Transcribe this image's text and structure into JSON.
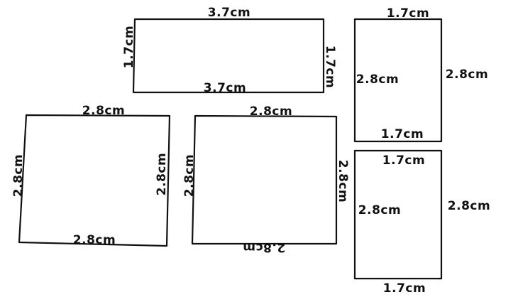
{
  "colors": {
    "ink": "#111111",
    "background": "#ffffff"
  },
  "rect_top": {
    "top": "3.7cm",
    "bottom": "3.7cm",
    "left": "1.7cm",
    "right": "1.7cm"
  },
  "square_left": {
    "top": "2.8cm",
    "bottom": "2.8cm",
    "left": "2.8cm",
    "right": "2.8cm"
  },
  "square_middle": {
    "top": "2.8cm",
    "bottom": "2.8cm",
    "left": "2.8cm",
    "right": "2.8cm"
  },
  "rect_right_upper": {
    "top": "1.7cm",
    "bottom": "1.7cm",
    "inside": "2.8cm",
    "outside": "2.8cm"
  },
  "rect_right_lower": {
    "top": "1.7cm",
    "bottom": "1.7cm",
    "inside": "2.8cm",
    "outside": "2.8cm"
  }
}
